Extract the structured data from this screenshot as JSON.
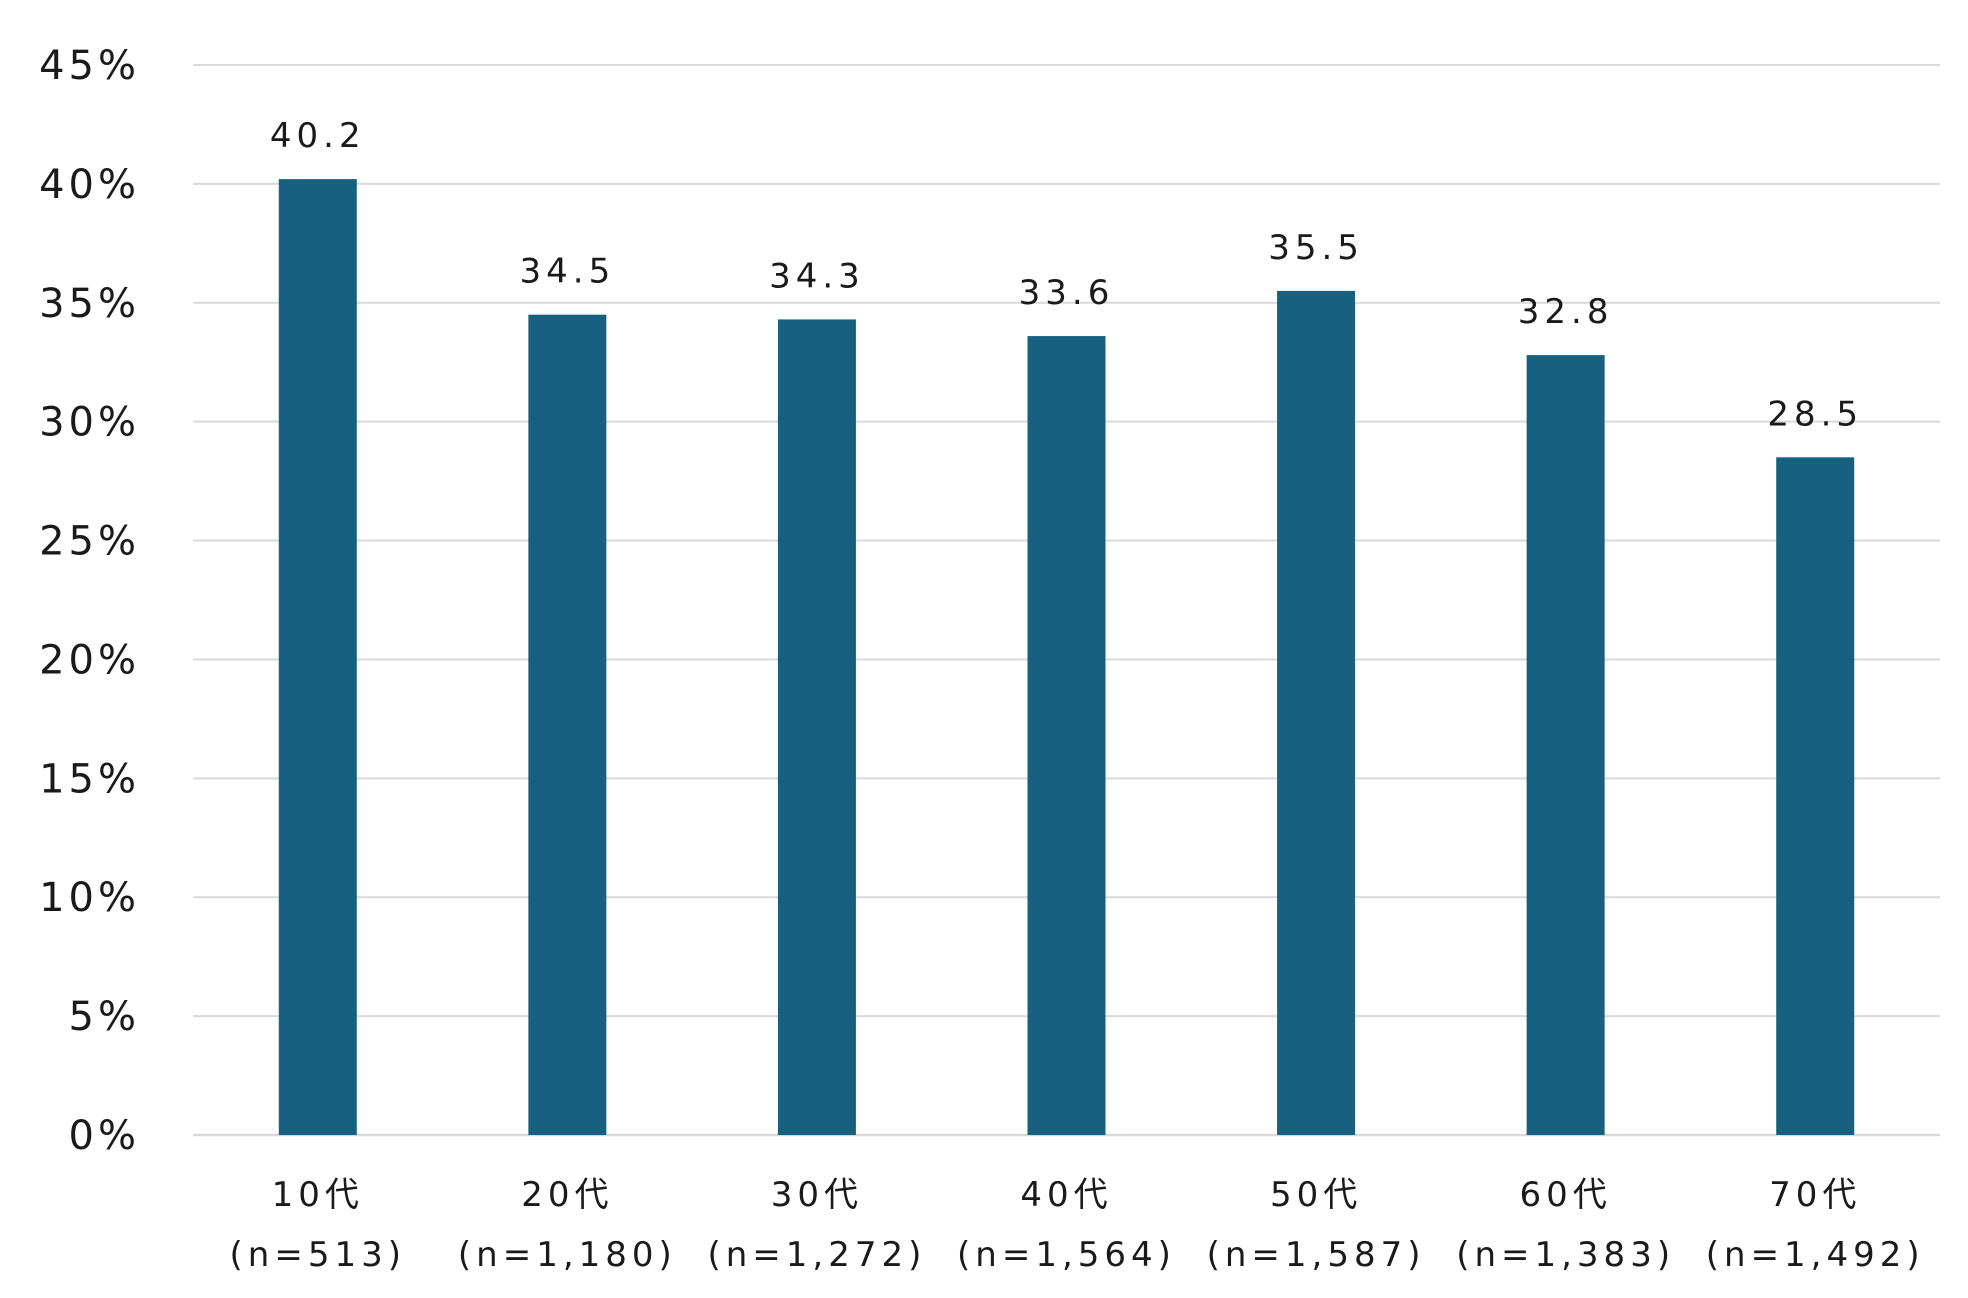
{
  "chart_data": {
    "type": "bar",
    "categories": [
      {
        "label": "10代",
        "n": "(n=513)"
      },
      {
        "label": "20代",
        "n": "(n=1,180)"
      },
      {
        "label": "30代",
        "n": "(n=1,272)"
      },
      {
        "label": "40代",
        "n": "(n=1,564)"
      },
      {
        "label": "50代",
        "n": "(n=1,587)"
      },
      {
        "label": "60代",
        "n": "(n=1,383)"
      },
      {
        "label": "70代",
        "n": "(n=1,492)"
      }
    ],
    "values": [
      40.2,
      34.5,
      34.3,
      33.6,
      35.5,
      32.8,
      28.5
    ],
    "value_labels": [
      "40.2",
      "34.5",
      "34.3",
      "33.6",
      "35.5",
      "32.8",
      "28.5"
    ],
    "ylim": [
      0,
      45
    ],
    "yticks": [
      {
        "value": 0,
        "label": "0%"
      },
      {
        "value": 5,
        "label": "5%"
      },
      {
        "value": 10,
        "label": "10%"
      },
      {
        "value": 15,
        "label": "15%"
      },
      {
        "value": 20,
        "label": "20%"
      },
      {
        "value": 25,
        "label": "25%"
      },
      {
        "value": 30,
        "label": "30%"
      },
      {
        "value": 35,
        "label": "35%"
      },
      {
        "value": 40,
        "label": "40%"
      },
      {
        "value": 45,
        "label": "45%"
      }
    ],
    "grid": true,
    "legend": "none",
    "bar_color": "#17607f",
    "gridline_color": "#d9d9d9",
    "text_color": "#1a1a1a"
  }
}
